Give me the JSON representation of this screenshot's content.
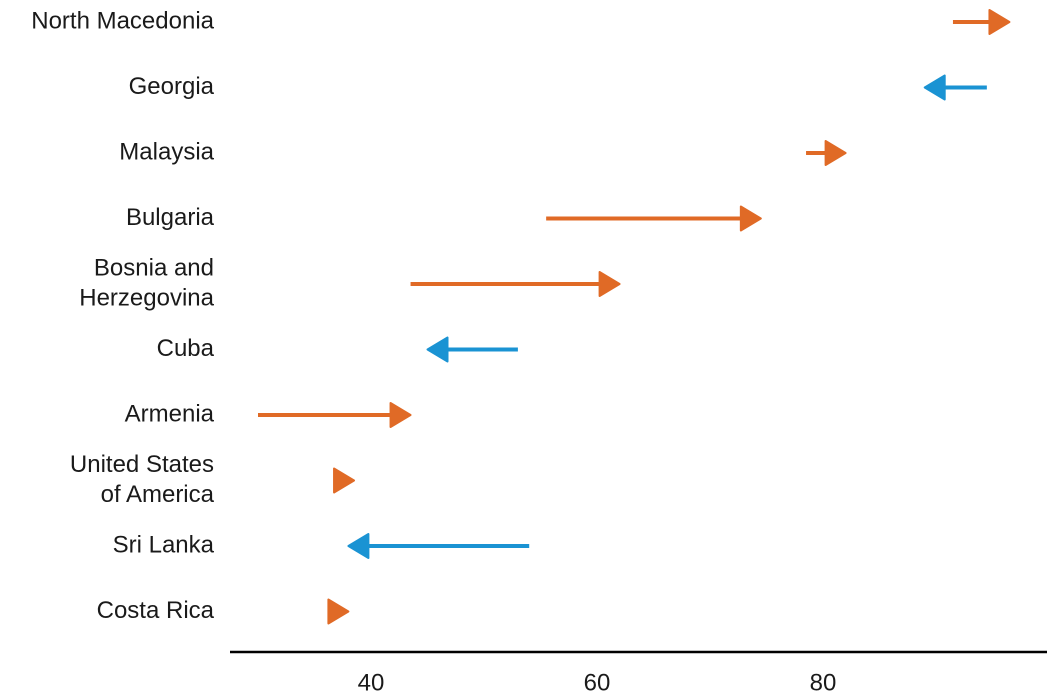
{
  "chart_data": {
    "type": "arrow",
    "title": "",
    "xlabel": "",
    "ylabel": "",
    "xlim": [
      27.5,
      98
    ],
    "xticks": [
      40,
      60,
      80
    ],
    "grid": false,
    "legend": "none",
    "colors": {
      "increase": "#E06A26",
      "decrease": "#1A93D3",
      "axis": "#000000"
    },
    "categories": [
      [
        "North Macedonia"
      ],
      [
        "Georgia"
      ],
      [
        "Malaysia"
      ],
      [
        "Bulgaria"
      ],
      [
        "Bosnia and",
        "Herzegovina"
      ],
      [
        "Cuba"
      ],
      [
        "Armenia"
      ],
      [
        "United States",
        "of America"
      ],
      [
        "Sri Lanka"
      ],
      [
        "Costa Rica"
      ]
    ],
    "series": [
      {
        "start": 91.5,
        "end": 96.5
      },
      {
        "start": 94.5,
        "end": 89
      },
      {
        "start": 78.5,
        "end": 82
      },
      {
        "start": 55.5,
        "end": 74.5
      },
      {
        "start": 43.5,
        "end": 62
      },
      {
        "start": 53,
        "end": 45
      },
      {
        "start": 30,
        "end": 43.5
      },
      {
        "start": 37,
        "end": 38.5
      },
      {
        "start": 54,
        "end": 38
      },
      {
        "start": 36.5,
        "end": 38
      }
    ]
  }
}
